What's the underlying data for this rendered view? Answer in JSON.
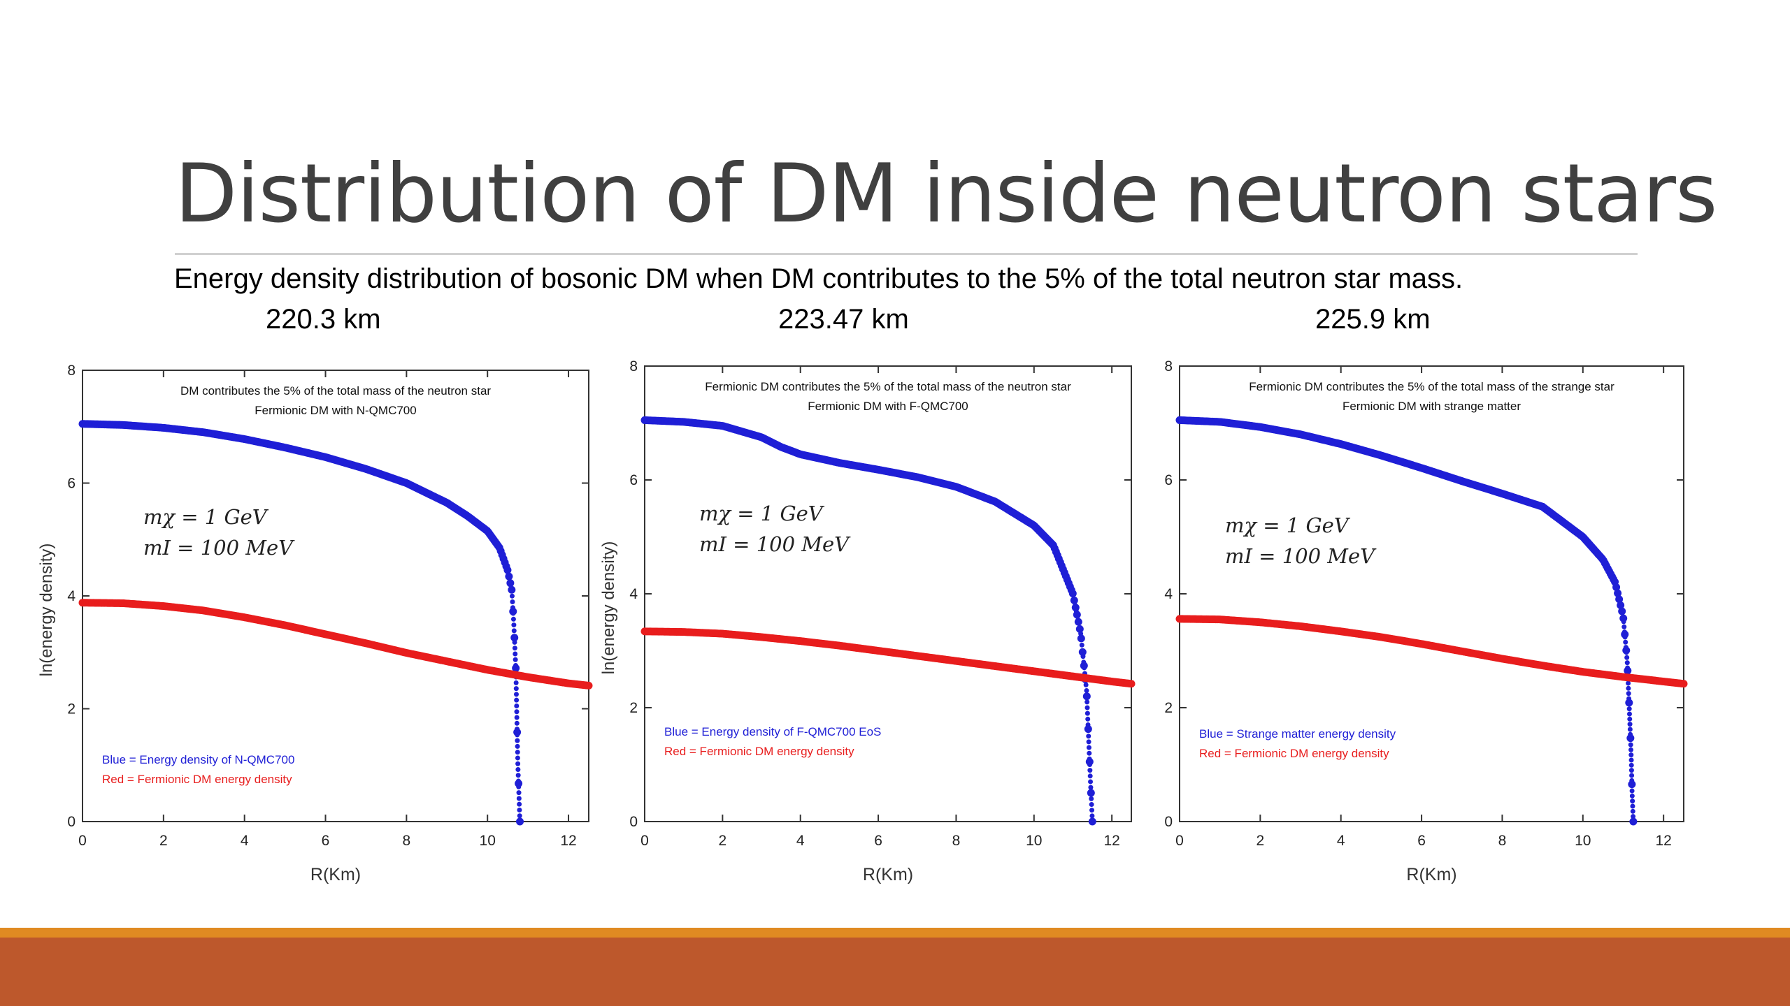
{
  "slide": {
    "title": "Distribution of DM inside neutron stars",
    "subtitle": "Energy density distribution of bosonic DM when DM contributes to the 5% of the total neutron star mass.",
    "radii": [
      "220.3 km",
      "223.47 km",
      "225.9 km"
    ]
  },
  "colors": {
    "blue": "#1f1fd6",
    "red": "#e81d1d",
    "title": "#404040",
    "bar_orange": "#e08a22",
    "bar_rust": "#bd582c"
  },
  "chart_data": [
    {
      "type": "scatter",
      "title": "DM contributes the 5% of the total mass of the neutron star",
      "subtitle": "Fermionic DM with N-QMC700",
      "xlabel": "R(Km)",
      "ylabel": "ln(energy density)",
      "xlim": [
        0,
        12.5
      ],
      "ylim": [
        0,
        8
      ],
      "xticks": [
        "0",
        "2",
        "4",
        "6",
        "8",
        "10",
        "12"
      ],
      "yticks": [
        "0",
        "2",
        "4",
        "6",
        "8"
      ],
      "params": [
        "mχ = 1 GeV",
        "mI = 100 MeV"
      ],
      "legend": [
        "Blue = Energy density of  N-QMC700",
        "Red = Fermionic DM energy density"
      ],
      "series": [
        {
          "color": "blue",
          "x": [
            0,
            1,
            2,
            3,
            4,
            5,
            6,
            7,
            8,
            9,
            9.5,
            10,
            10.3,
            10.5,
            10.6,
            10.65,
            10.7,
            10.72,
            10.75,
            10.8
          ],
          "y": [
            7.05,
            7.03,
            6.98,
            6.9,
            6.78,
            6.63,
            6.46,
            6.25,
            6.0,
            5.65,
            5.42,
            5.15,
            4.85,
            4.45,
            4.1,
            3.5,
            2.7,
            2.0,
            1.0,
            0.0
          ]
        },
        {
          "color": "red",
          "x": [
            0,
            1,
            2,
            3,
            4,
            5,
            6,
            7,
            8,
            9,
            10,
            11,
            12,
            12.5
          ],
          "y": [
            3.88,
            3.87,
            3.82,
            3.74,
            3.62,
            3.48,
            3.32,
            3.16,
            2.99,
            2.84,
            2.69,
            2.56,
            2.45,
            2.41
          ]
        }
      ]
    },
    {
      "type": "scatter",
      "title": "Fermionic DM contributes the 5% of the total mass of the neutron star",
      "subtitle": "Fermionic DM with F-QMC700",
      "xlabel": "R(Km)",
      "ylabel": "ln(energy density)",
      "xlim": [
        0,
        12.5
      ],
      "ylim": [
        0,
        8
      ],
      "xticks": [
        "0",
        "2",
        "4",
        "6",
        "8",
        "10",
        "12"
      ],
      "yticks": [
        "0",
        "2",
        "4",
        "6",
        "8"
      ],
      "params": [
        "mχ = 1 GeV",
        "mI = 100 MeV"
      ],
      "legend": [
        "Blue = Energy density of F-QMC700 EoS",
        "Red = Fermionic DM energy density"
      ],
      "series": [
        {
          "color": "blue",
          "x": [
            0,
            1,
            2,
            3,
            3.5,
            4,
            5,
            6,
            7,
            8,
            9,
            10,
            10.5,
            11,
            11.2,
            11.35,
            11.4,
            11.45,
            11.5
          ],
          "y": [
            7.05,
            7.02,
            6.95,
            6.75,
            6.58,
            6.45,
            6.3,
            6.18,
            6.05,
            5.88,
            5.62,
            5.2,
            4.85,
            4.0,
            3.3,
            2.3,
            1.5,
            0.7,
            0.0
          ]
        },
        {
          "color": "red",
          "x": [
            0,
            1,
            2,
            3,
            4,
            5,
            6,
            7,
            8,
            9,
            10,
            11,
            12,
            12.5
          ],
          "y": [
            3.34,
            3.33,
            3.3,
            3.24,
            3.17,
            3.09,
            3.0,
            2.91,
            2.82,
            2.73,
            2.64,
            2.55,
            2.46,
            2.42
          ]
        }
      ]
    },
    {
      "type": "scatter",
      "title": "Fermionic DM contributes the 5% of the total mass of the strange star",
      "subtitle": "Fermionic DM with strange matter",
      "xlabel": "R(Km)",
      "ylabel": "",
      "xlim": [
        0,
        12.5
      ],
      "ylim": [
        0,
        8
      ],
      "xticks": [
        "0",
        "2",
        "4",
        "6",
        "8",
        "10",
        "12"
      ],
      "yticks": [
        "0",
        "2",
        "4",
        "6",
        "8"
      ],
      "params": [
        "mχ = 1 GeV",
        "mI = 100 MeV"
      ],
      "legend": [
        "Blue = Strange matter energy density",
        "Red = Fermionic DM energy density"
      ],
      "series": [
        {
          "color": "blue",
          "x": [
            0,
            1,
            2,
            3,
            4,
            5,
            6,
            7,
            8,
            9,
            10,
            10.5,
            10.8,
            11,
            11.1,
            11.15,
            11.2,
            11.22,
            11.25
          ],
          "y": [
            7.05,
            7.02,
            6.93,
            6.8,
            6.63,
            6.43,
            6.21,
            5.98,
            5.76,
            5.53,
            5.0,
            4.6,
            4.2,
            3.6,
            2.8,
            2.0,
            1.1,
            0.5,
            0.0
          ]
        },
        {
          "color": "red",
          "x": [
            0,
            1,
            2,
            3,
            4,
            5,
            6,
            7,
            8,
            9,
            10,
            11,
            12,
            12.5
          ],
          "y": [
            3.56,
            3.55,
            3.5,
            3.43,
            3.34,
            3.24,
            3.12,
            2.99,
            2.86,
            2.74,
            2.63,
            2.54,
            2.46,
            2.42
          ]
        }
      ]
    }
  ]
}
